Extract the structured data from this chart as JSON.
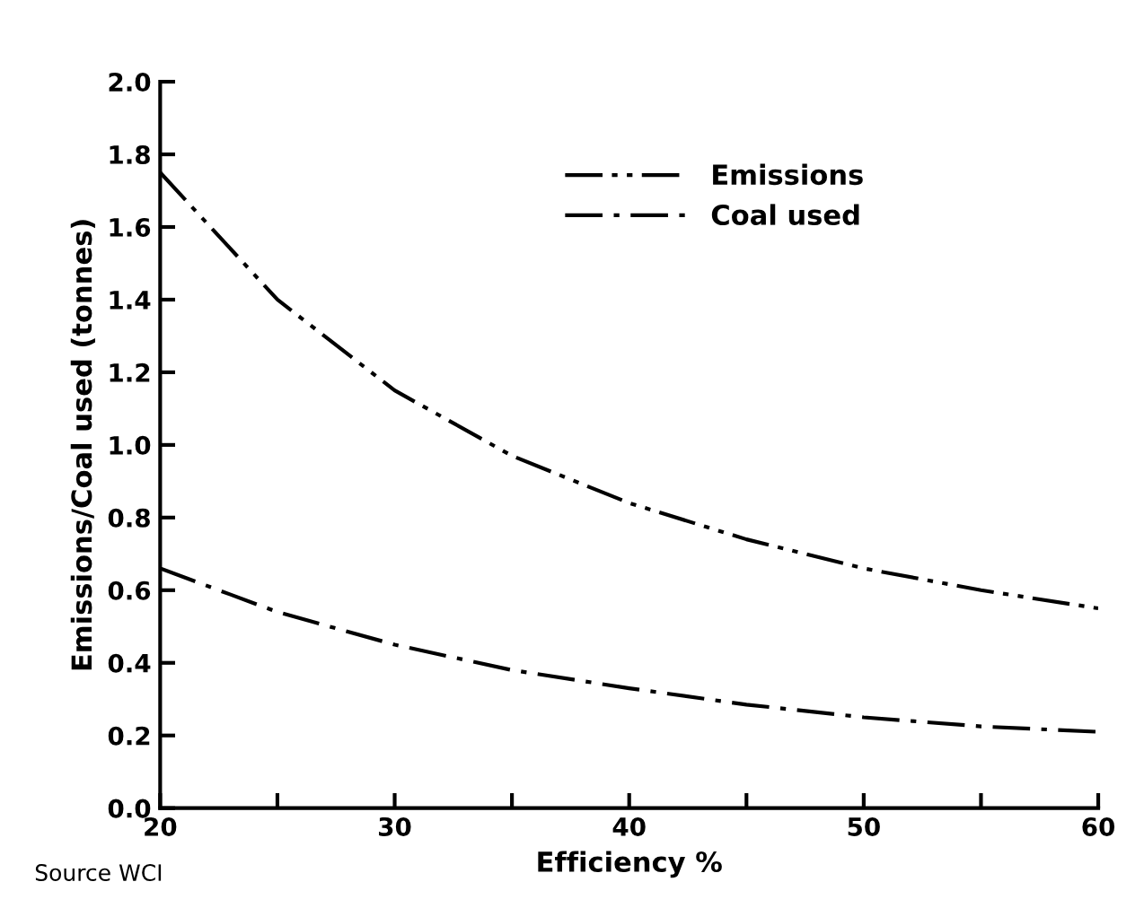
{
  "chart_data": {
    "type": "line",
    "xlabel": "Efficiency %",
    "ylabel": "Emissions/Coal used (tonnes)",
    "x": [
      20,
      25,
      30,
      35,
      40,
      45,
      50,
      55,
      60
    ],
    "series": [
      {
        "name": "Emissions",
        "color": "#000000",
        "values": [
          1.75,
          1.4,
          1.15,
          0.97,
          0.84,
          0.74,
          0.66,
          0.6,
          0.55
        ]
      },
      {
        "name": "Coal used",
        "color": "#000000",
        "values": [
          0.66,
          0.54,
          0.45,
          0.38,
          0.33,
          0.285,
          0.25,
          0.225,
          0.21
        ]
      }
    ],
    "xlim": [
      20,
      60
    ],
    "ylim": [
      0,
      2.0
    ],
    "xticks": [
      20,
      {
        "value": 25,
        "label": null
      },
      30,
      {
        "value": 35,
        "label": null
      },
      40,
      {
        "value": 45,
        "label": null
      },
      50,
      {
        "value": 55,
        "label": null
      },
      60
    ],
    "yticks": [
      {
        "value": 0,
        "label": "0.0"
      },
      {
        "value": 0.2,
        "label": "0.2"
      },
      {
        "value": 0.4,
        "label": "0.4"
      },
      {
        "value": 0.6,
        "label": "0.6"
      },
      {
        "value": 0.8,
        "label": "0.8"
      },
      {
        "value": 1.0,
        "label": "1.0"
      },
      {
        "value": 1.2,
        "label": "1.2"
      },
      {
        "value": 1.4,
        "label": "1.4"
      },
      {
        "value": 1.6,
        "label": "1.6"
      },
      {
        "value": 1.8,
        "label": "1.8"
      },
      {
        "value": 2.0,
        "label": "2.0"
      }
    ],
    "grid": false,
    "legend": "top right",
    "line_style": "dashed",
    "annotations": [
      "Source WCI"
    ]
  }
}
